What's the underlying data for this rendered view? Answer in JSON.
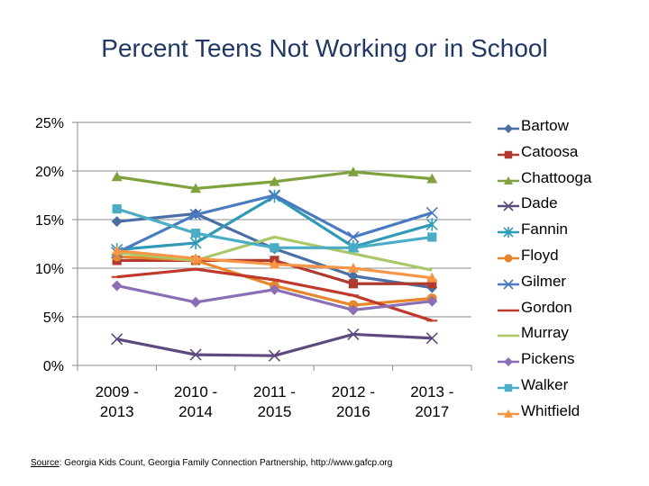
{
  "title": "Percent Teens Not Working or in School",
  "source": {
    "label": "Source",
    "text": ": Georgia Kids Count, Georgia Family Connection Partnership, http://www.gafcp.org"
  },
  "chart_data": {
    "type": "line",
    "title": "Percent Teens Not Working or in School",
    "categories": [
      [
        "2009 -",
        "2013"
      ],
      [
        "2010 -",
        "2014"
      ],
      [
        "2011 -",
        "2015"
      ],
      [
        "2012 -",
        "2016"
      ],
      [
        "2013 -",
        "2017"
      ]
    ],
    "yticks": [
      "0%",
      "5%",
      "10%",
      "15%",
      "20%",
      "25%"
    ],
    "ylim": [
      0,
      25
    ],
    "grid": true,
    "legend_position": "right",
    "series": [
      {
        "name": "Bartow",
        "color": "#4a6fa5",
        "marker": "diamond",
        "values": [
          14.8,
          15.6,
          12.0,
          9.2,
          8.0
        ]
      },
      {
        "name": "Catoosa",
        "color": "#b03a2e",
        "marker": "square",
        "values": [
          10.8,
          10.8,
          10.8,
          8.4,
          8.4
        ]
      },
      {
        "name": "Chattooga",
        "color": "#7ea33e",
        "marker": "triangle",
        "values": [
          19.4,
          18.2,
          18.9,
          19.9,
          19.2
        ]
      },
      {
        "name": "Dade",
        "color": "#5e4a7e",
        "marker": "x",
        "values": [
          2.7,
          1.1,
          1.0,
          3.2,
          2.8
        ]
      },
      {
        "name": "Fannin",
        "color": "#2e9ab5",
        "marker": "star",
        "values": [
          11.9,
          12.6,
          17.4,
          12.2,
          14.5
        ]
      },
      {
        "name": "Floyd",
        "color": "#e8862a",
        "marker": "circle",
        "values": [
          11.2,
          10.8,
          8.2,
          6.2,
          6.9
        ]
      },
      {
        "name": "Gilmer",
        "color": "#4a7ac0",
        "marker": "x",
        "values": [
          11.6,
          15.5,
          17.5,
          13.2,
          15.7
        ]
      },
      {
        "name": "Gordon",
        "color": "#c0392b",
        "marker": "dash",
        "values": [
          9.1,
          9.9,
          8.8,
          7.2,
          4.6
        ]
      },
      {
        "name": "Murray",
        "color": "#a8c86a",
        "marker": "none",
        "values": [
          11.6,
          10.8,
          13.2,
          11.5,
          9.8
        ]
      },
      {
        "name": "Pickens",
        "color": "#8a6fb5",
        "marker": "diamond",
        "values": [
          8.2,
          6.5,
          7.8,
          5.7,
          6.6
        ]
      },
      {
        "name": "Walker",
        "color": "#4bacc6",
        "marker": "square",
        "values": [
          16.1,
          13.6,
          12.1,
          12.1,
          13.2
        ]
      },
      {
        "name": "Whitfield",
        "color": "#f79646",
        "marker": "triangle",
        "values": [
          11.8,
          11.0,
          10.4,
          10.0,
          9.0
        ]
      }
    ]
  }
}
